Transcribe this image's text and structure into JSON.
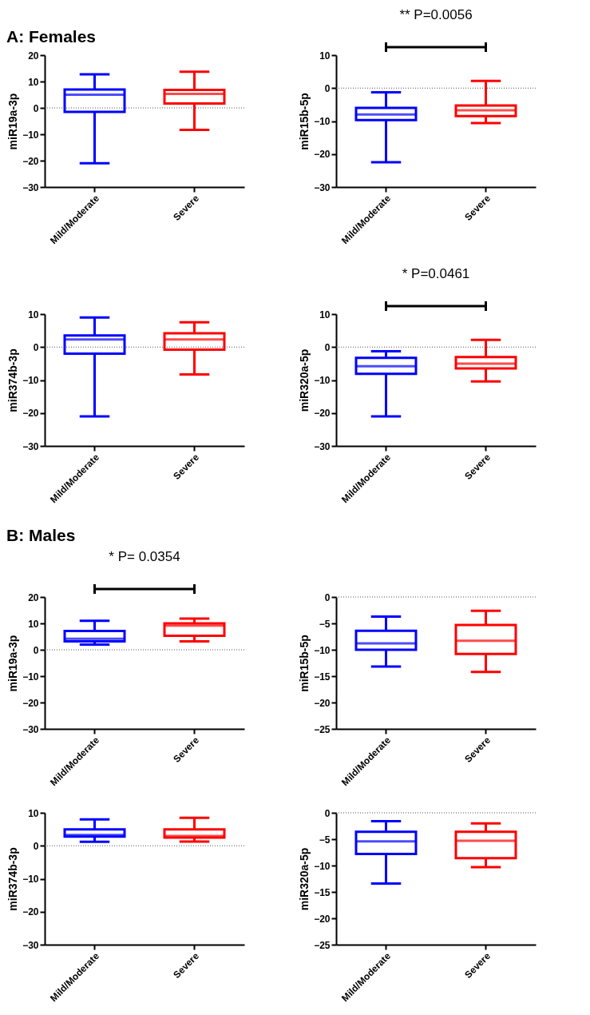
{
  "chart_data": [
    {
      "type": "box",
      "title": "A:  Females",
      "ylabel": "miR19a-3p",
      "categories": [
        "Mild/Moderate",
        "Severe"
      ],
      "colors": [
        "#0000ff",
        "#ff0000"
      ],
      "ylim": [
        -30,
        20
      ],
      "yticks": [
        -30,
        -20,
        -10,
        0,
        10,
        20
      ],
      "boxes": [
        {
          "low": -21,
          "q1": -1.5,
          "median": 5,
          "q3": 7,
          "high": 12.7
        },
        {
          "low": -8.3,
          "q1": 1.7,
          "median": 5.3,
          "q3": 6.8,
          "high": 13.7
        }
      ],
      "ref_lines": [
        {
          "axis": "y",
          "value": 0,
          "label": null,
          "line_style": "dotted"
        }
      ]
    },
    {
      "type": "box",
      "ylabel": "miR15b-5p",
      "categories": [
        "Mild/Moderate",
        "Severe"
      ],
      "colors": [
        "#0000ff",
        "#ff0000"
      ],
      "ylim": [
        -30,
        10
      ],
      "yticks": [
        -30,
        -20,
        -10,
        0,
        10
      ],
      "boxes": [
        {
          "low": -22.5,
          "q1": -9.7,
          "median": -8,
          "q3": -6,
          "high": -1.3
        },
        {
          "low": -10.6,
          "q1": -8.5,
          "median": -6.7,
          "q3": -5.3,
          "high": 2.2
        }
      ],
      "ref_lines": [
        {
          "axis": "y",
          "value": 0,
          "label": null,
          "line_style": "dotted"
        }
      ],
      "annotations": [
        "** P=0.0056"
      ]
    },
    {
      "type": "box",
      "ylabel": "miR374b-3p",
      "categories": [
        "Mild/Moderate",
        "Severe"
      ],
      "colors": [
        "#0000ff",
        "#ff0000"
      ],
      "ylim": [
        -30,
        10
      ],
      "yticks": [
        -30,
        -20,
        -10,
        0,
        10
      ],
      "boxes": [
        {
          "low": -21,
          "q1": -2,
          "median": 2.3,
          "q3": 3.5,
          "high": 9
        },
        {
          "low": -8.3,
          "q1": -0.8,
          "median": 2.3,
          "q3": 4.2,
          "high": 7.5
        }
      ],
      "ref_lines": [
        {
          "axis": "y",
          "value": 0,
          "label": null,
          "line_style": "dotted"
        }
      ]
    },
    {
      "type": "box",
      "ylabel": "miR320a-5p",
      "categories": [
        "Mild/Moderate",
        "Severe"
      ],
      "colors": [
        "#0000ff",
        "#ff0000"
      ],
      "ylim": [
        -30,
        10
      ],
      "yticks": [
        -30,
        -20,
        -10,
        0,
        10
      ],
      "boxes": [
        {
          "low": -21,
          "q1": -8.1,
          "median": -5.8,
          "q3": -3.3,
          "high": -1.3
        },
        {
          "low": -10.4,
          "q1": -6.5,
          "median": -5,
          "q3": -3,
          "high": 2.2
        }
      ],
      "ref_lines": [
        {
          "axis": "y",
          "value": 0,
          "label": null,
          "line_style": "dotted"
        }
      ],
      "annotations": [
        "* P=0.0461"
      ]
    },
    {
      "type": "box",
      "title": "B: Males",
      "ylabel": "miR19a-3p",
      "categories": [
        "Mild/Moderate",
        "Severe"
      ],
      "colors": [
        "#0000ff",
        "#ff0000"
      ],
      "ylim": [
        -30,
        20
      ],
      "yticks": [
        -30,
        -20,
        -10,
        0,
        10,
        20
      ],
      "boxes": [
        {
          "low": 2,
          "q1": 3.2,
          "median": 4.2,
          "q3": 7.1,
          "high": 11
        },
        {
          "low": 3.2,
          "q1": 5.3,
          "median": 9.2,
          "q3": 10,
          "high": 11.8
        }
      ],
      "ref_lines": [
        {
          "axis": "y",
          "value": 0,
          "label": null,
          "line_style": "dotted"
        }
      ],
      "annotations": [
        "* P= 0.0354"
      ]
    },
    {
      "type": "box",
      "ylabel": "miR15b-5p",
      "categories": [
        "Mild/Moderate",
        "Severe"
      ],
      "colors": [
        "#0000ff",
        "#ff0000"
      ],
      "ylim": [
        -25,
        0
      ],
      "yticks": [
        -25,
        -20,
        -15,
        -10,
        -5,
        0
      ],
      "boxes": [
        {
          "low": -13.2,
          "q1": -10,
          "median": -8.8,
          "q3": -6.4,
          "high": -3.7
        },
        {
          "low": -14.2,
          "q1": -10.8,
          "median": -8.3,
          "q3": -5.3,
          "high": -2.6
        }
      ],
      "ref_lines": [
        {
          "axis": "y",
          "value": 0,
          "label": null,
          "line_style": "dotted"
        }
      ]
    },
    {
      "type": "box",
      "ylabel": "miR374b-3p",
      "categories": [
        "Mild/Moderate",
        "Severe"
      ],
      "colors": [
        "#0000ff",
        "#ff0000"
      ],
      "ylim": [
        -30,
        10
      ],
      "yticks": [
        -30,
        -20,
        -10,
        0,
        10
      ],
      "boxes": [
        {
          "low": 1.2,
          "q1": 2.8,
          "median": 3.3,
          "q3": 5,
          "high": 8
        },
        {
          "low": 1.3,
          "q1": 2.5,
          "median": 3,
          "q3": 5,
          "high": 8.5
        }
      ],
      "ref_lines": [
        {
          "axis": "y",
          "value": 0,
          "label": null,
          "line_style": "dotted"
        }
      ]
    },
    {
      "type": "box",
      "ylabel": "miR320a-5p",
      "categories": [
        "Mild/Moderate",
        "Severe"
      ],
      "colors": [
        "#0000ff",
        "#ff0000"
      ],
      "ylim": [
        -25,
        0
      ],
      "yticks": [
        -25,
        -20,
        -15,
        -10,
        -5,
        0
      ],
      "boxes": [
        {
          "low": -13.4,
          "q1": -7.8,
          "median": -5.4,
          "q3": -3.6,
          "high": -1.6
        },
        {
          "low": -10.3,
          "q1": -8.6,
          "median": -5.3,
          "q3": -3.6,
          "high": -2
        }
      ],
      "ref_lines": [
        {
          "axis": "y",
          "value": 0,
          "label": null,
          "line_style": "dotted"
        }
      ]
    }
  ]
}
